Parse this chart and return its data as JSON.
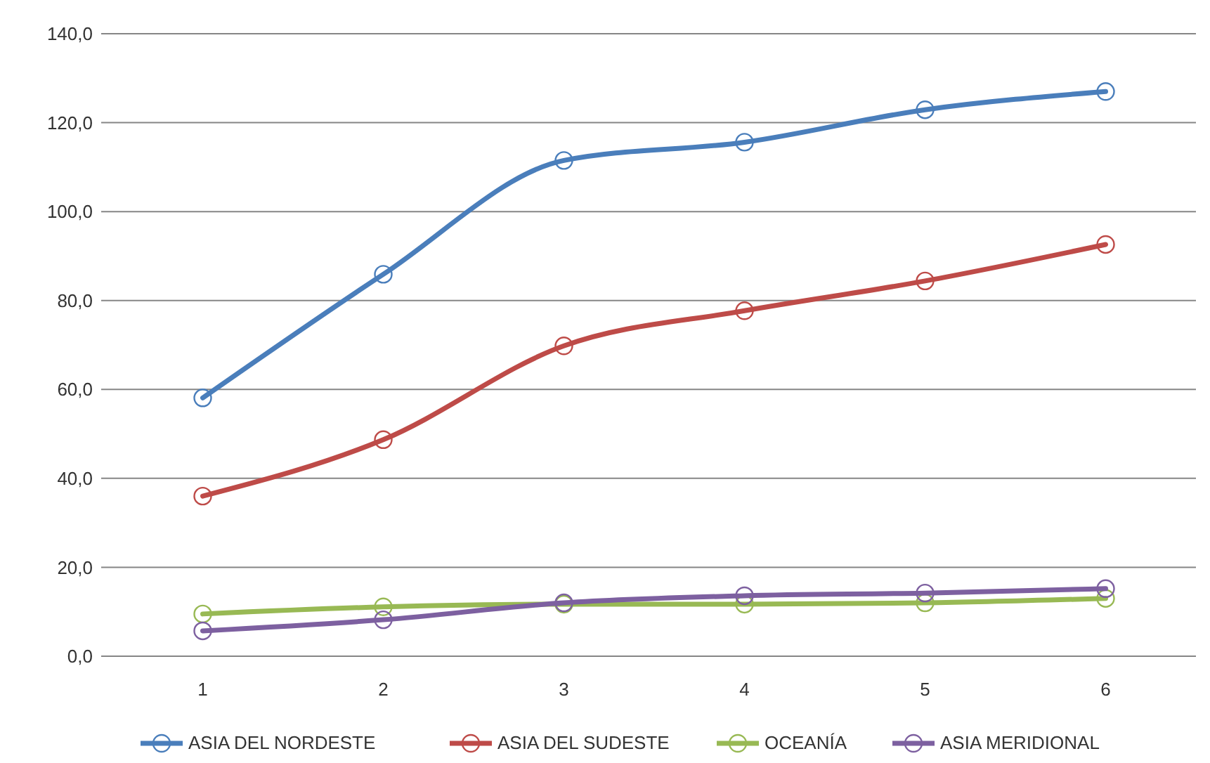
{
  "chart_data": {
    "type": "line",
    "categories": [
      "1",
      "2",
      "3",
      "4",
      "5",
      "6"
    ],
    "series": [
      {
        "name": "ASIA DEL NORDESTE",
        "color": "#4a7ebb",
        "values": [
          58.1,
          85.9,
          111.5,
          115.6,
          122.9,
          127.0
        ]
      },
      {
        "name": "ASIA DEL SUDESTE",
        "color": "#be4b48",
        "values": [
          36.0,
          48.7,
          69.8,
          77.7,
          84.4,
          92.6
        ]
      },
      {
        "name": "OCEANÍA",
        "color": "#98b954",
        "values": [
          9.5,
          11.1,
          11.7,
          11.7,
          12.0,
          13.0
        ]
      },
      {
        "name": "ASIA MERIDIONAL",
        "color": "#7d60a0",
        "values": [
          5.7,
          8.2,
          12.0,
          13.6,
          14.2,
          15.2
        ]
      }
    ],
    "ylim": [
      0,
      140
    ],
    "yticks": [
      {
        "value": 0,
        "label": "0,0"
      },
      {
        "value": 20,
        "label": "20,0"
      },
      {
        "value": 40,
        "label": "40,0"
      },
      {
        "value": 60,
        "label": "60,0"
      },
      {
        "value": 80,
        "label": "80,0"
      },
      {
        "value": 100,
        "label": "100,0"
      },
      {
        "value": 120,
        "label": "120,0"
      },
      {
        "value": 140,
        "label": "140,0"
      }
    ],
    "grid": "y",
    "legend": "bottom",
    "marker": "circle",
    "line_style": "solid"
  }
}
